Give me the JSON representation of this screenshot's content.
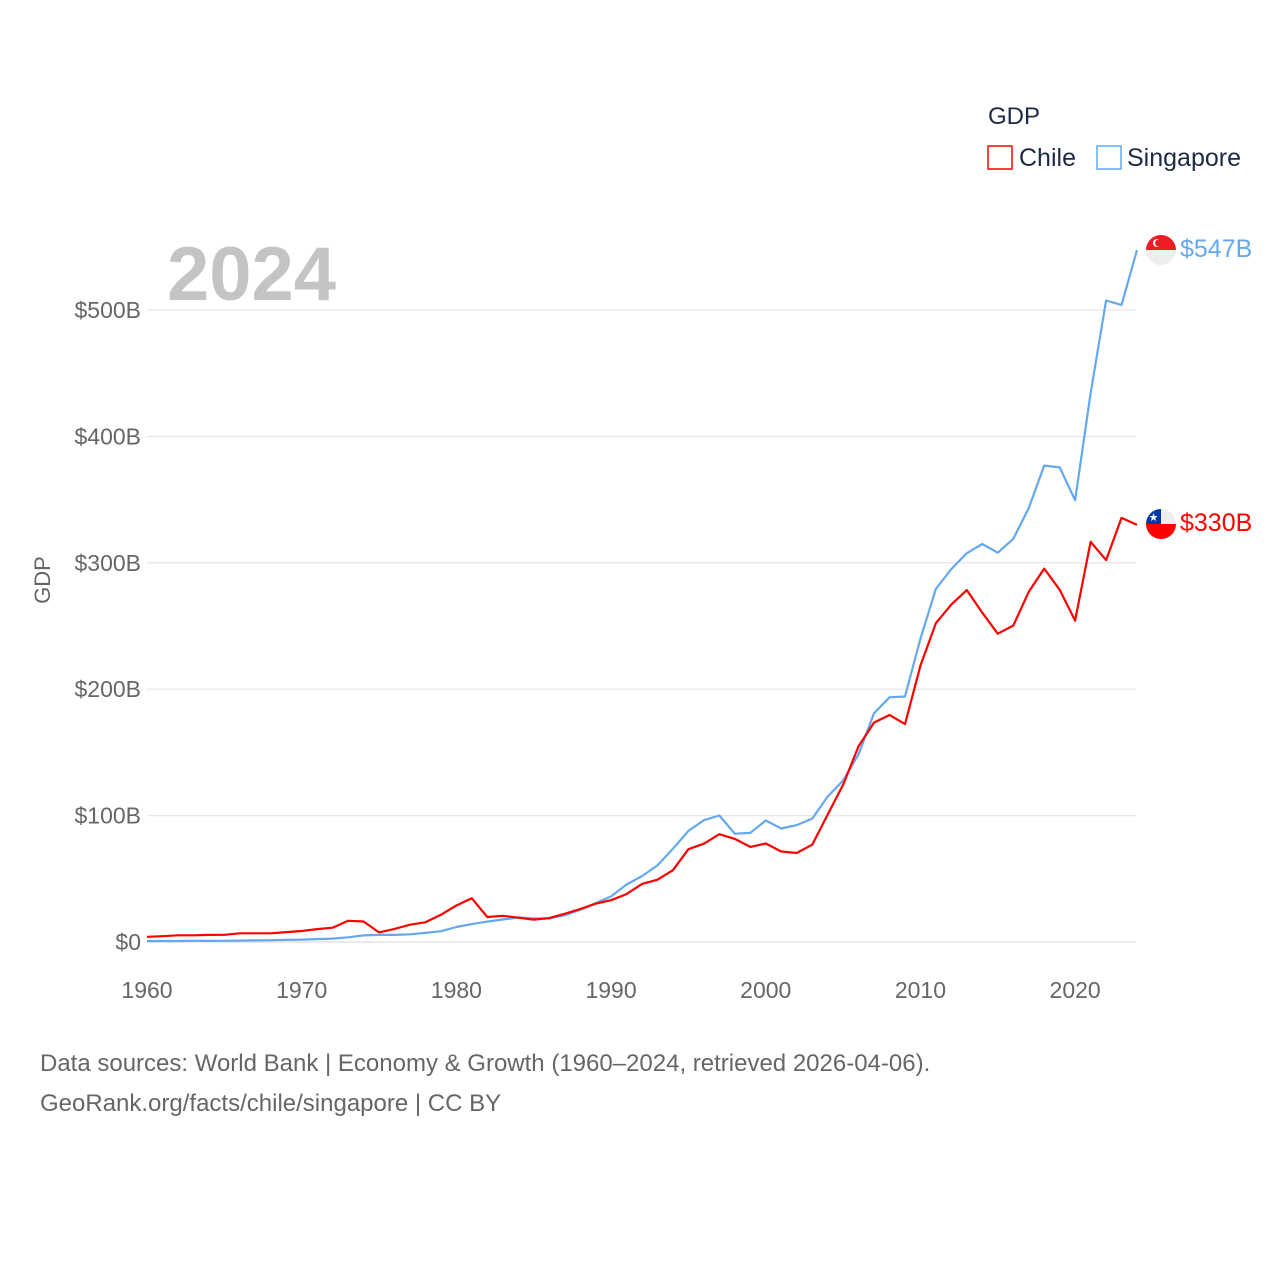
{
  "chart_data": {
    "type": "line",
    "title": "GDP",
    "ylabel": "GDP",
    "xlabel": "",
    "year_label": "2024",
    "xlim": [
      1960,
      2024
    ],
    "ylim": [
      0,
      550
    ],
    "x_ticks": [
      "1960",
      "1970",
      "1980",
      "1990",
      "2000",
      "2010",
      "2020"
    ],
    "y_ticks": [
      "$0",
      "$100B",
      "$200B",
      "$300B",
      "$400B",
      "$500B"
    ],
    "grid": true,
    "legend_position": "top-right",
    "series": [
      {
        "name": "Chile",
        "color": "#ff0000",
        "end_label": "$330B",
        "values": [
          4.1,
          4.6,
          5.3,
          5.3,
          5.6,
          5.7,
          6.9,
          6.9,
          6.9,
          7.8,
          8.7,
          10.2,
          11.3,
          16.8,
          16.2,
          7.6,
          10.4,
          13.7,
          15.6,
          21.5,
          28.9,
          34.6,
          19.8,
          20.7,
          19.2,
          17.7,
          18.9,
          22.3,
          26.0,
          30.3,
          33.1,
          37.9,
          46.0,
          49.3,
          56.8,
          73.4,
          77.8,
          85.3,
          81.6,
          75.2,
          77.9,
          71.6,
          70.4,
          77.0,
          100.6,
          124.4,
          155.0,
          173.6,
          179.6,
          172.4,
          218.5,
          252.3,
          267.1,
          278.4,
          260.5,
          243.9,
          250.4,
          277.0,
          295.4,
          278.6,
          254.3,
          316.6,
          302.1,
          335.5,
          330.0
        ]
      },
      {
        "name": "Singapore",
        "color": "#64a8ef",
        "end_label": "$547B",
        "values": [
          0.7,
          0.76,
          0.82,
          0.92,
          0.89,
          0.97,
          1.08,
          1.24,
          1.43,
          1.68,
          1.92,
          2.26,
          2.72,
          3.69,
          5.22,
          5.63,
          5.65,
          6.08,
          7.16,
          8.57,
          11.9,
          14.2,
          16.1,
          17.8,
          19.4,
          18.6,
          18.7,
          21.1,
          25.5,
          30.6,
          36.1,
          45.5,
          52.1,
          60.6,
          73.7,
          87.9,
          96.4,
          100.1,
          85.7,
          86.3,
          96.1,
          89.8,
          92.5,
          97.6,
          115.0,
          127.8,
          148.6,
          180.9,
          193.6,
          194.2,
          239.8,
          279.4,
          295.1,
          307.6,
          314.9,
          308.0,
          319.0,
          343.3,
          376.9,
          375.5,
          349.5,
          434.1,
          507.5,
          504.0,
          547.4
        ]
      }
    ]
  },
  "footer": {
    "line1": "Data sources: World Bank | Economy & Growth (1960–2024, retrieved 2026-04-06).",
    "line2": "GeoRank.org/facts/chile/singapore | CC BY"
  }
}
